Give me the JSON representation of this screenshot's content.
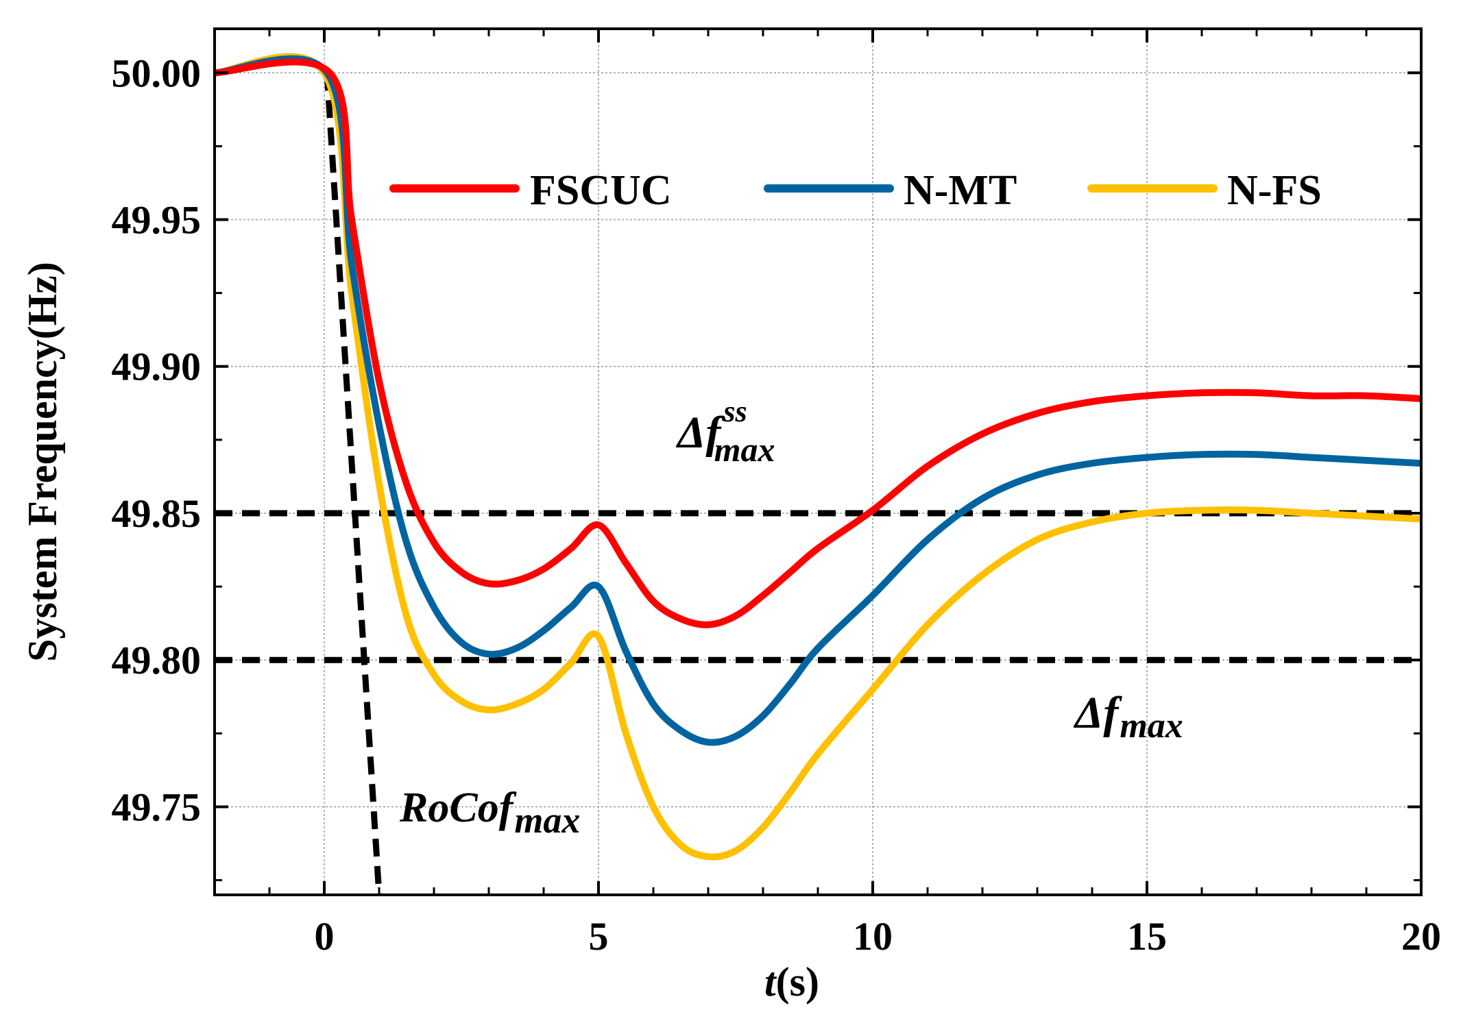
{
  "chart_data": {
    "type": "line",
    "title": "",
    "xlabel_italic": "t",
    "xlabel_rest": "(s)",
    "ylabel": "System Frequency(Hz)",
    "xlim": [
      -2,
      20
    ],
    "ylim": [
      49.72,
      50.015
    ],
    "x_ticks": [
      0,
      5,
      10,
      15,
      20
    ],
    "x_tick_labels": [
      "0",
      "5",
      "10",
      "15",
      "20"
    ],
    "y_ticks": [
      49.75,
      49.8,
      49.85,
      49.9,
      49.95,
      50.0
    ],
    "y_tick_labels": [
      "49.75",
      "49.80",
      "49.85",
      "49.90",
      "49.95",
      "50.00"
    ],
    "grid": true,
    "legend_position": "top",
    "series": [
      {
        "name": "FSCUC",
        "color": "#ff0000",
        "x": [
          -2,
          0.1,
          0.5,
          1,
          1.5,
          2,
          2.5,
          3,
          3.5,
          4,
          4.5,
          5,
          5.5,
          6,
          6.5,
          7,
          7.5,
          8,
          8.5,
          9,
          10,
          11,
          12,
          13,
          14,
          15,
          16,
          17,
          18,
          19,
          20
        ],
        "y": [
          50.0,
          50.0,
          49.95,
          49.895,
          49.86,
          49.84,
          49.83,
          49.826,
          49.827,
          49.831,
          49.838,
          49.846,
          49.833,
          49.82,
          49.814,
          49.812,
          49.815,
          49.822,
          49.83,
          49.838,
          49.851,
          49.866,
          49.877,
          49.884,
          49.888,
          49.89,
          49.891,
          49.891,
          49.89,
          49.89,
          49.889
        ]
      },
      {
        "name": "N-MT",
        "color": "#0064a0",
        "x": [
          -2,
          0.05,
          0.5,
          1,
          1.5,
          2,
          2.5,
          3,
          3.5,
          4,
          4.5,
          5,
          5.5,
          6,
          6.5,
          7,
          7.5,
          8,
          8.5,
          9,
          10,
          11,
          12,
          13,
          14,
          15,
          16,
          17,
          18,
          19,
          20
        ],
        "y": [
          50.0,
          50.0,
          49.935,
          49.88,
          49.84,
          49.818,
          49.806,
          49.802,
          49.804,
          49.81,
          49.818,
          49.825,
          49.803,
          49.785,
          49.776,
          49.772,
          49.774,
          49.781,
          49.792,
          49.804,
          49.822,
          49.841,
          49.855,
          49.863,
          49.867,
          49.869,
          49.87,
          49.87,
          49.869,
          49.868,
          49.867
        ]
      },
      {
        "name": "N-FS",
        "color": "#ffc000",
        "x": [
          -2,
          0,
          0.5,
          1,
          1.5,
          2,
          2.5,
          3,
          3.5,
          4,
          4.5,
          5,
          5.5,
          6,
          6.5,
          7,
          7.5,
          8,
          8.5,
          9,
          10,
          11,
          12,
          13,
          14,
          15,
          16,
          17,
          18,
          19,
          20
        ],
        "y": [
          50.0,
          50.0,
          49.925,
          49.86,
          49.815,
          49.795,
          49.786,
          49.783,
          49.785,
          49.79,
          49.799,
          49.808,
          49.775,
          49.75,
          49.737,
          49.733,
          49.735,
          49.743,
          49.755,
          49.768,
          49.79,
          49.812,
          49.829,
          49.841,
          49.847,
          49.85,
          49.851,
          49.851,
          49.85,
          49.849,
          49.848
        ]
      }
    ],
    "reference_lines": [
      {
        "name": "delta-f-ss-max-line",
        "y": 49.85,
        "style": "dashed",
        "color": "#000000"
      },
      {
        "name": "delta-f-max-line",
        "y": 49.8,
        "style": "dashed",
        "color": "#000000"
      },
      {
        "name": "rocof-max-line",
        "x": [
          0.05,
          1.0
        ],
        "y": [
          50.0,
          49.72
        ],
        "style": "dashed",
        "color": "#000000"
      }
    ],
    "annotations": [
      {
        "name": "delta-f-ss-max-annotation",
        "base": "Δf",
        "sup": "ss",
        "sub": "max"
      },
      {
        "name": "delta-f-max-annotation",
        "base": "Δf",
        "sub": "max"
      },
      {
        "name": "rocof-max-annotation",
        "base": "RoCof",
        "sub": "max"
      }
    ]
  }
}
